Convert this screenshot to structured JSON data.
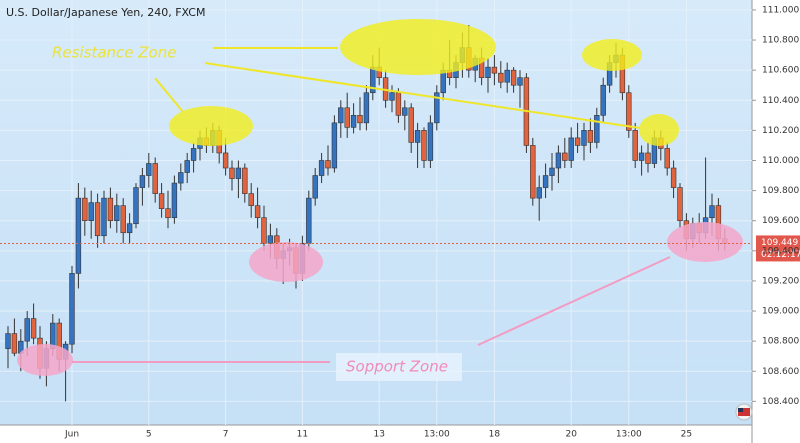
{
  "chart_data": {
    "type": "candlestick",
    "title": "U.S. Dollar/Japanese Yen, 240, FXCM",
    "categories": [
      null,
      null,
      null,
      null,
      null,
      null,
      null,
      null,
      null,
      null,
      "Jun",
      null,
      null,
      null,
      null,
      null,
      null,
      null,
      null,
      null,
      null,
      null,
      "5",
      null,
      null,
      null,
      null,
      null,
      null,
      null,
      null,
      null,
      null,
      null,
      "7",
      null,
      null,
      null,
      null,
      null,
      null,
      null,
      null,
      null,
      null,
      null,
      "11",
      null,
      null,
      null,
      null,
      null,
      null,
      null,
      null,
      null,
      null,
      null,
      "13",
      null,
      null,
      null,
      null,
      null,
      null,
      null,
      null,
      "13:00",
      null,
      null,
      null,
      null,
      null,
      null,
      null,
      null,
      "18",
      null,
      null,
      null,
      null,
      null,
      null,
      null,
      null,
      null,
      null,
      null,
      "20",
      null,
      null,
      null,
      null,
      null,
      null,
      null,
      null,
      "13:00",
      null,
      null,
      null,
      null,
      null,
      null,
      null,
      null,
      "25",
      null,
      null,
      null,
      null,
      null,
      null
    ],
    "ohlc": [
      [
        108.75,
        108.9,
        108.62,
        108.85
      ],
      [
        108.85,
        108.95,
        108.7,
        108.72
      ],
      [
        108.72,
        108.88,
        108.6,
        108.8
      ],
      [
        108.8,
        109.0,
        108.7,
        108.95
      ],
      [
        108.95,
        109.05,
        108.78,
        108.82
      ],
      [
        108.82,
        108.9,
        108.55,
        108.62
      ],
      [
        108.62,
        108.8,
        108.5,
        108.75
      ],
      [
        108.75,
        108.98,
        108.7,
        108.92
      ],
      [
        108.92,
        108.95,
        108.6,
        108.68
      ],
      [
        108.68,
        108.8,
        108.4,
        108.78
      ],
      [
        108.78,
        109.3,
        108.72,
        109.25
      ],
      [
        109.25,
        109.85,
        109.15,
        109.75
      ],
      [
        109.75,
        109.82,
        109.5,
        109.6
      ],
      [
        109.6,
        109.8,
        109.48,
        109.72
      ],
      [
        109.72,
        109.78,
        109.42,
        109.5
      ],
      [
        109.5,
        109.8,
        109.45,
        109.75
      ],
      [
        109.75,
        109.82,
        109.55,
        109.6
      ],
      [
        109.6,
        109.78,
        109.52,
        109.7
      ],
      [
        109.7,
        109.75,
        109.45,
        109.52
      ],
      [
        109.52,
        109.65,
        109.45,
        109.58
      ],
      [
        109.58,
        109.85,
        109.55,
        109.82
      ],
      [
        109.82,
        109.95,
        109.7,
        109.9
      ],
      [
        109.9,
        110.05,
        109.82,
        109.98
      ],
      [
        109.98,
        110.02,
        109.72,
        109.78
      ],
      [
        109.78,
        109.85,
        109.62,
        109.68
      ],
      [
        109.68,
        109.8,
        109.55,
        109.62
      ],
      [
        109.62,
        109.9,
        109.58,
        109.85
      ],
      [
        109.85,
        109.98,
        109.8,
        109.92
      ],
      [
        109.92,
        110.05,
        109.85,
        110.0
      ],
      [
        110.0,
        110.12,
        109.92,
        110.08
      ],
      [
        110.08,
        110.2,
        110.0,
        110.15
      ],
      [
        110.15,
        110.22,
        110.05,
        110.1
      ],
      [
        110.1,
        110.25,
        110.05,
        110.2
      ],
      [
        110.2,
        110.23,
        109.98,
        110.05
      ],
      [
        110.05,
        110.15,
        109.9,
        109.95
      ],
      [
        109.95,
        110.0,
        109.8,
        109.88
      ],
      [
        109.88,
        110.0,
        109.75,
        109.95
      ],
      [
        109.95,
        109.98,
        109.72,
        109.78
      ],
      [
        109.78,
        109.85,
        109.62,
        109.7
      ],
      [
        109.7,
        109.82,
        109.55,
        109.62
      ],
      [
        109.62,
        109.7,
        109.4,
        109.45
      ],
      [
        109.45,
        109.58,
        109.35,
        109.5
      ],
      [
        109.5,
        109.55,
        109.28,
        109.35
      ],
      [
        109.35,
        109.45,
        109.18,
        109.4
      ],
      [
        109.4,
        109.48,
        109.3,
        109.42
      ],
      [
        109.42,
        109.45,
        109.15,
        109.25
      ],
      [
        109.25,
        109.5,
        109.2,
        109.45
      ],
      [
        109.45,
        109.8,
        109.4,
        109.75
      ],
      [
        109.75,
        109.95,
        109.7,
        109.9
      ],
      [
        109.9,
        110.05,
        109.85,
        110.0
      ],
      [
        110.0,
        110.1,
        109.9,
        109.95
      ],
      [
        109.95,
        110.3,
        109.92,
        110.25
      ],
      [
        110.25,
        110.4,
        110.15,
        110.35
      ],
      [
        110.35,
        110.45,
        110.15,
        110.22
      ],
      [
        110.22,
        110.38,
        110.18,
        110.3
      ],
      [
        110.3,
        110.42,
        110.2,
        110.25
      ],
      [
        110.25,
        110.5,
        110.2,
        110.45
      ],
      [
        110.45,
        110.7,
        110.4,
        110.62
      ],
      [
        110.62,
        110.75,
        110.5,
        110.55
      ],
      [
        110.55,
        110.6,
        110.35,
        110.4
      ],
      [
        110.4,
        110.5,
        110.32,
        110.45
      ],
      [
        110.45,
        110.48,
        110.25,
        110.3
      ],
      [
        110.3,
        110.4,
        110.2,
        110.35
      ],
      [
        110.35,
        110.38,
        110.05,
        110.12
      ],
      [
        110.12,
        110.25,
        109.95,
        110.2
      ],
      [
        110.2,
        110.22,
        109.95,
        110.0
      ],
      [
        110.0,
        110.3,
        109.95,
        110.25
      ],
      [
        110.25,
        110.5,
        110.2,
        110.45
      ],
      [
        110.45,
        110.65,
        110.4,
        110.6
      ],
      [
        110.6,
        110.8,
        110.5,
        110.55
      ],
      [
        110.55,
        110.7,
        110.48,
        110.65
      ],
      [
        110.65,
        110.85,
        110.55,
        110.75
      ],
      [
        110.75,
        110.9,
        110.55,
        110.6
      ],
      [
        110.6,
        110.7,
        110.52,
        110.68
      ],
      [
        110.68,
        110.75,
        110.5,
        110.55
      ],
      [
        110.55,
        110.68,
        110.45,
        110.62
      ],
      [
        110.62,
        110.7,
        110.5,
        110.58
      ],
      [
        110.58,
        110.66,
        110.48,
        110.52
      ],
      [
        110.52,
        110.65,
        110.45,
        110.6
      ],
      [
        110.6,
        110.62,
        110.45,
        110.5
      ],
      [
        110.5,
        110.6,
        110.35,
        110.55
      ],
      [
        110.55,
        110.58,
        110.05,
        110.1
      ],
      [
        110.1,
        110.15,
        109.7,
        109.75
      ],
      [
        109.75,
        109.9,
        109.6,
        109.82
      ],
      [
        109.82,
        109.98,
        109.75,
        109.9
      ],
      [
        109.9,
        110.05,
        109.8,
        109.95
      ],
      [
        109.95,
        110.1,
        109.85,
        110.05
      ],
      [
        110.05,
        110.15,
        109.95,
        110.0
      ],
      [
        110.0,
        110.22,
        109.95,
        110.15
      ],
      [
        110.15,
        110.25,
        110.05,
        110.1
      ],
      [
        110.1,
        110.25,
        110.0,
        110.2
      ],
      [
        110.2,
        110.28,
        110.05,
        110.12
      ],
      [
        110.12,
        110.35,
        110.08,
        110.3
      ],
      [
        110.3,
        110.55,
        110.25,
        110.5
      ],
      [
        110.5,
        110.7,
        110.45,
        110.65
      ],
      [
        110.65,
        110.78,
        110.55,
        110.7
      ],
      [
        110.7,
        110.75,
        110.4,
        110.45
      ],
      [
        110.45,
        110.5,
        110.15,
        110.2
      ],
      [
        110.2,
        110.25,
        109.95,
        110.0
      ],
      [
        110.0,
        110.1,
        109.9,
        110.05
      ],
      [
        110.05,
        110.12,
        109.92,
        109.98
      ],
      [
        109.98,
        110.2,
        109.95,
        110.15
      ],
      [
        110.15,
        110.2,
        110.0,
        110.08
      ],
      [
        110.08,
        110.12,
        109.9,
        109.95
      ],
      [
        109.95,
        110.0,
        109.75,
        109.82
      ],
      [
        109.82,
        109.85,
        109.55,
        109.6
      ],
      [
        109.6,
        109.65,
        109.4,
        109.48
      ],
      [
        109.48,
        109.62,
        109.42,
        109.58
      ],
      [
        109.58,
        109.65,
        109.45,
        109.52
      ],
      [
        109.52,
        110.02,
        109.48,
        109.62
      ],
      [
        109.62,
        109.78,
        109.5,
        109.7
      ],
      [
        109.7,
        109.75,
        109.4,
        109.48
      ],
      [
        109.48,
        109.55,
        109.4,
        109.449
      ]
    ],
    "up_color": "#3573c0",
    "down_color": "#e0643f",
    "ylim": [
      108.243,
      111.066
    ],
    "yticks": [
      {
        "value": 108.4,
        "label": "108.400"
      },
      {
        "value": 108.6,
        "label": "108.600"
      },
      {
        "value": 108.8,
        "label": "108.800"
      },
      {
        "value": 109.0,
        "label": "109.000"
      },
      {
        "value": 109.2,
        "label": "109.200"
      },
      {
        "value": 109.4,
        "label": "109.400"
      },
      {
        "value": 109.6,
        "label": "109.600"
      },
      {
        "value": 109.8,
        "label": "109.800"
      },
      {
        "value": 110.0,
        "label": "110.000"
      },
      {
        "value": 110.2,
        "label": "110.200"
      },
      {
        "value": 110.4,
        "label": "110.400"
      },
      {
        "value": 110.6,
        "label": "110.600"
      },
      {
        "value": 110.8,
        "label": "110.800"
      },
      {
        "value": 111.0,
        "label": "111.000"
      }
    ],
    "grid": true,
    "current_price": 109.449,
    "countdown": "02:12:17",
    "annotations": [
      "Resistance Zone",
      "Sopport Zone"
    ]
  }
}
